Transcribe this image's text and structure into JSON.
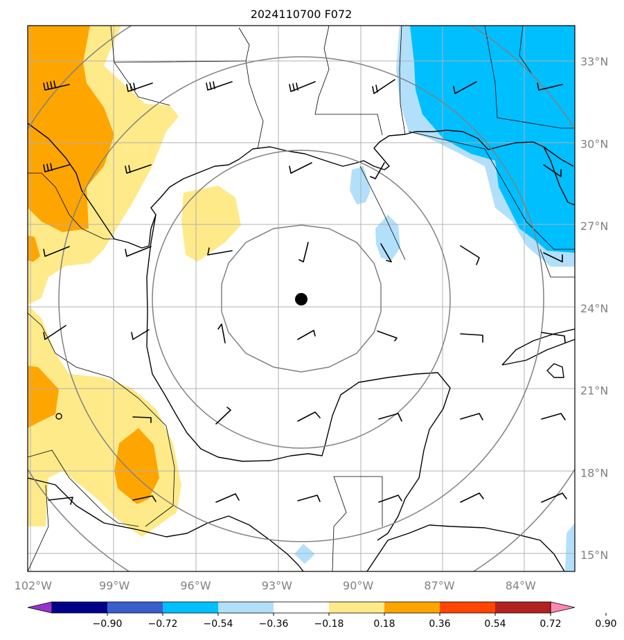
{
  "title": "2024110700 F072",
  "map": {
    "lon_range": [
      -102.2,
      -82.0
    ],
    "lat_range": [
      14.4,
      34.3
    ],
    "center_marker": {
      "lon": -92.1,
      "lat": 24.3
    },
    "range_rings_deg": [
      3.0,
      5.5,
      8.0
    ],
    "lon_ticks": [
      {
        "value": -102,
        "label": "102°W"
      },
      {
        "value": -99,
        "label": "99°W"
      },
      {
        "value": -96,
        "label": "96°W"
      },
      {
        "value": -93,
        "label": "93°W"
      },
      {
        "value": -90,
        "label": "90°W"
      },
      {
        "value": -87,
        "label": "87°W"
      },
      {
        "value": -84,
        "label": "84°W"
      }
    ],
    "lat_ticks": [
      {
        "value": 33,
        "label": "33°N"
      },
      {
        "value": 30,
        "label": "30°N"
      },
      {
        "value": 27,
        "label": "27°N"
      },
      {
        "value": 24,
        "label": "24°N"
      },
      {
        "value": 21,
        "label": "21°N"
      },
      {
        "value": 18,
        "label": "18°N"
      },
      {
        "value": 15,
        "label": "15°N"
      }
    ]
  },
  "colorbar": {
    "bounds": [
      "−0.90",
      "−0.72",
      "−0.54",
      "−0.36",
      "−0.18",
      "0.18",
      "0.36",
      "0.54",
      "0.72",
      "0.90"
    ],
    "colors": [
      "#9932cc",
      "#00008b",
      "#3a5fcd",
      "#00bfff",
      "#b2e0fb",
      "#ffffff",
      "#ffea8a",
      "#ffa500",
      "#ff4500",
      "#b22222",
      "#ff88b0"
    ]
  },
  "colors": {
    "orange": "#ffa500",
    "yellow": "#ffea8a",
    "lightblue": "#b2e0fb",
    "blue": "#00bfff"
  }
}
